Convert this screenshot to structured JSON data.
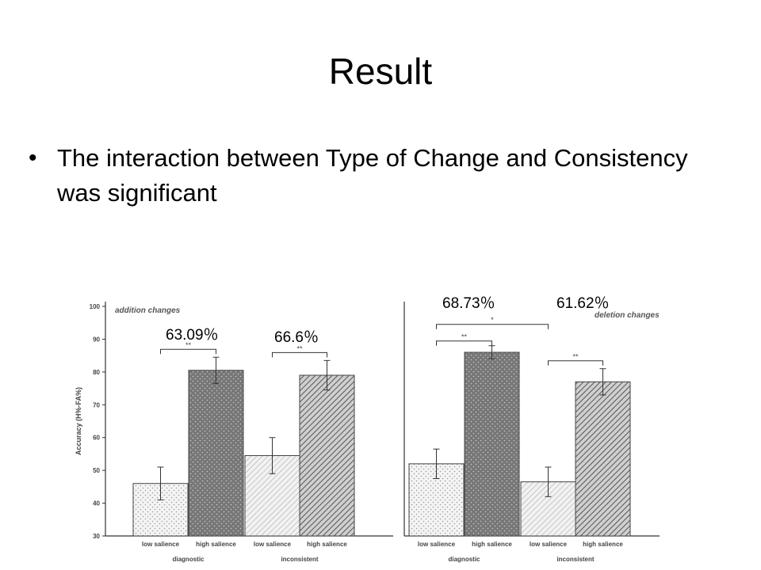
{
  "slide": {
    "title": "Result",
    "bullet": "The interaction between Type of Change and Consistency was significant"
  },
  "annotations": {
    "p1": "63.09％",
    "p2": "66.6％",
    "p3": "68.73％",
    "p4": "61.62％"
  },
  "chart_data": {
    "type": "bar",
    "ylabel": "Accuracy (H%-FA%)",
    "ylim": [
      30,
      100
    ],
    "yticks": [
      30,
      40,
      50,
      60,
      70,
      80,
      90,
      100
    ],
    "panels": [
      {
        "title": "addition changes",
        "groups": [
          {
            "label": "diagnostic",
            "bars": [
              {
                "label": "low salience",
                "value": 46,
                "err": 5
              },
              {
                "label": "high salience",
                "value": 80.5,
                "err": 4
              }
            ],
            "sig": "**"
          },
          {
            "label": "inconsistent",
            "bars": [
              {
                "label": "low salience",
                "value": 54.5,
                "err": 5.5
              },
              {
                "label": "high salience",
                "value": 79,
                "err": 4.5
              }
            ],
            "sig": "**"
          }
        ]
      },
      {
        "title": "deletion changes",
        "groups": [
          {
            "label": "diagnostic",
            "bars": [
              {
                "label": "low salience",
                "value": 52,
                "err": 4.5
              },
              {
                "label": "high salience",
                "value": 86,
                "err": 2
              }
            ],
            "sig": "**"
          },
          {
            "label": "inconsistent",
            "bars": [
              {
                "label": "low salience",
                "value": 46.5,
                "err": 4.5
              },
              {
                "label": "high salience",
                "value": 77,
                "err": 4
              }
            ],
            "sig": "**"
          }
        ],
        "cross_sig": "*"
      }
    ]
  }
}
